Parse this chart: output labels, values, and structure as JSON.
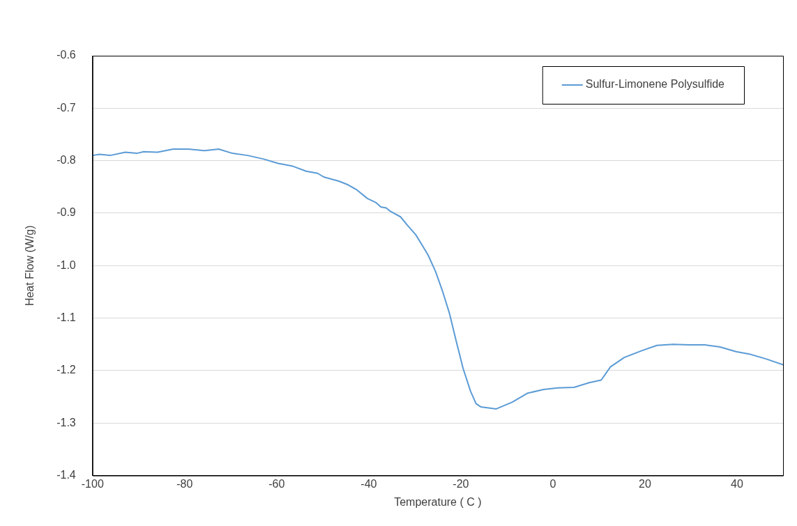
{
  "chart_data": {
    "type": "line",
    "xlabel": "Temperature ( C )",
    "ylabel": "Heat Flow (W/g)",
    "xlim": [
      -100,
      50
    ],
    "xticks": [
      -100,
      -80,
      -60,
      -40,
      -20,
      0,
      20,
      40
    ],
    "ylim": [
      -1.4,
      -0.6
    ],
    "yticks": [
      -1.4,
      -1.3,
      -1.2,
      -1.1,
      {
        "value": -1.0,
        "label": "-1.0"
      },
      -0.9,
      -0.8,
      -0.7,
      -0.6
    ],
    "grid": "y",
    "legend": "top right",
    "marker": "none",
    "line_style": "solid",
    "series": [
      {
        "name": "Sulfur-Limonene Polysulfide",
        "color": "#5b9bd5",
        "x": [
          -100,
          -98.5,
          -96.2,
          -92.9,
          -90.4,
          -88.9,
          -85.9,
          -82.5,
          -79.2,
          -75.7,
          -72.6,
          -69.6,
          -66.3,
          -62.8,
          -59.7,
          -56.7,
          -53.6,
          -51.1,
          -49.8,
          -46.5,
          -44.5,
          -42.7,
          -40.3,
          -38.4,
          -37.4,
          -36.2,
          -35.4,
          -33.1,
          -31.6,
          -29.8,
          -28.6,
          -27.1,
          -25.5,
          -24,
          -22.5,
          -21,
          -19.5,
          -17.9,
          -16.7,
          -15.7,
          -12.3,
          -8.8,
          -5.5,
          -2,
          1.1,
          4.6,
          7.9,
          10.5,
          12.5,
          15.5,
          19.3,
          22.6,
          26.1,
          29.6,
          33,
          36.3,
          39.8,
          42.9,
          46.4,
          50
        ],
        "values": [
          -0.79,
          -0.788,
          -0.79,
          -0.784,
          -0.786,
          -0.783,
          -0.784,
          -0.778,
          -0.778,
          -0.781,
          -0.778,
          -0.786,
          -0.79,
          -0.797,
          -0.805,
          -0.81,
          -0.82,
          -0.824,
          -0.831,
          -0.839,
          -0.846,
          -0.855,
          -0.872,
          -0.88,
          -0.888,
          -0.89,
          -0.896,
          -0.907,
          -0.923,
          -0.941,
          -0.958,
          -0.98,
          -1.011,
          -1.048,
          -1.09,
          -1.144,
          -1.196,
          -1.239,
          -1.263,
          -1.269,
          -1.273,
          -1.26,
          -1.243,
          -1.236,
          -1.233,
          -1.232,
          -1.223,
          -1.218,
          -1.193,
          -1.175,
          -1.162,
          -1.152,
          -1.15,
          -1.151,
          -1.151,
          -1.155,
          -1.164,
          -1.169,
          -1.178,
          -1.189
        ]
      }
    ]
  }
}
